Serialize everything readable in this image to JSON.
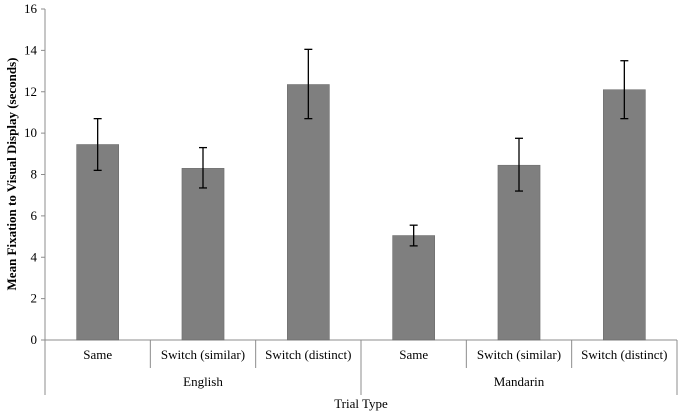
{
  "chart_data": {
    "type": "bar",
    "title": "",
    "xlabel": "Trial Type",
    "ylabel": "Mean Fixation to Visual Display (seconds)",
    "ylim": [
      0,
      16
    ],
    "yticks": [
      "0",
      "2",
      "4",
      "6",
      "8",
      "10",
      "12",
      "14",
      "16"
    ],
    "grid": false,
    "legend": "none",
    "bar_color": "#7f7f7f",
    "groups": [
      {
        "name": "English",
        "categories": [
          "Same",
          "Switch (similar)",
          "Switch (distinct)"
        ],
        "values": [
          9.45,
          8.3,
          12.35
        ],
        "error_low": [
          8.2,
          7.35,
          10.7
        ],
        "error_high": [
          10.7,
          9.3,
          14.05
        ]
      },
      {
        "name": "Mandarin",
        "categories": [
          "Same",
          "Switch (similar)",
          "Switch (distinct)"
        ],
        "values": [
          5.05,
          8.45,
          12.1
        ],
        "error_low": [
          4.55,
          7.2,
          10.7
        ],
        "error_high": [
          5.55,
          9.75,
          13.5
        ]
      }
    ]
  }
}
